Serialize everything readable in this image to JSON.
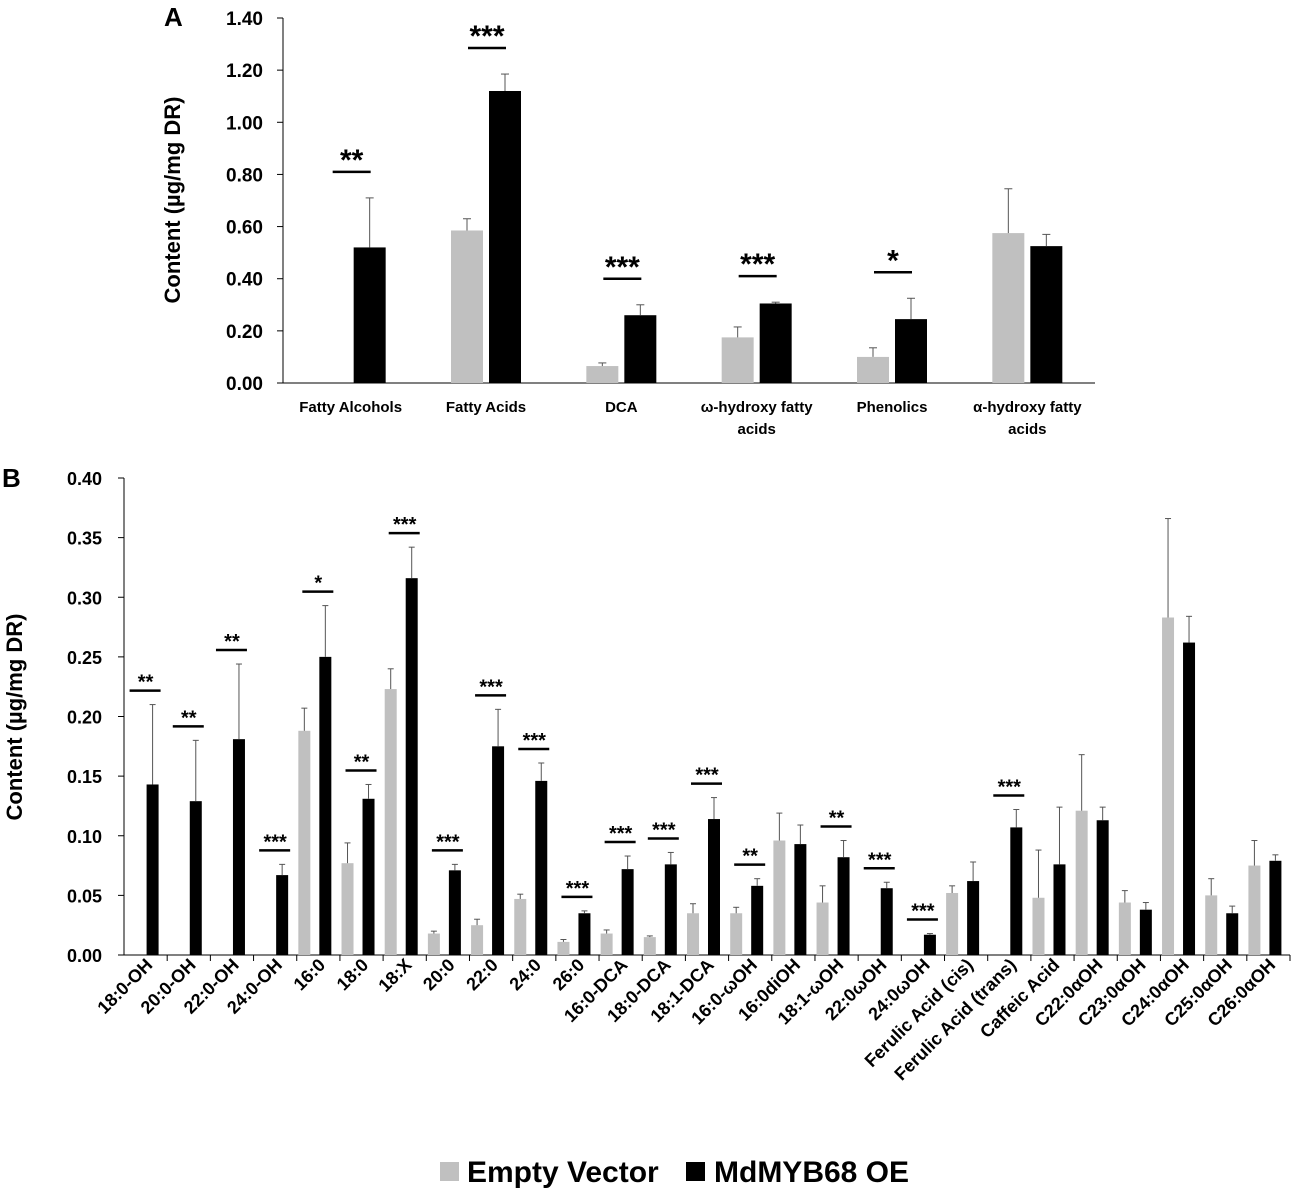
{
  "colors": {
    "empty_vector": "#c0c0c0",
    "overexpression": "#000000"
  },
  "legend": [
    "Empty Vector",
    "MdMYB68 OE"
  ],
  "chart_data": [
    {
      "type": "bar",
      "panel": "A",
      "ylabel": "Content (µg/mg DR)",
      "ylim": [
        0,
        1.4
      ],
      "yticks": [
        "0.00",
        "0.20",
        "0.40",
        "0.60",
        "0.80",
        "1.00",
        "1.20",
        "1.40"
      ],
      "categories": [
        [
          "Fatty Alcohols"
        ],
        [
          "Fatty Acids"
        ],
        [
          "DCA"
        ],
        [
          "ω-hydroxy fatty",
          "acids"
        ],
        [
          "Phenolics"
        ],
        [
          "α-hydroxy fatty",
          "acids"
        ]
      ],
      "series": [
        {
          "name": "Empty Vector",
          "values": [
            0,
            0.585,
            0.065,
            0.175,
            0.1,
            0.575
          ],
          "errors": [
            0,
            0.045,
            0.012,
            0.04,
            0.035,
            0.17
          ]
        },
        {
          "name": "MdMYB68 OE",
          "values": [
            0.52,
            1.12,
            0.26,
            0.305,
            0.245,
            0.525
          ],
          "errors": [
            0.19,
            0.065,
            0.04,
            0.005,
            0.08,
            0.045
          ]
        }
      ],
      "significance": [
        "**",
        "***",
        "***",
        "***",
        "*",
        ""
      ]
    },
    {
      "type": "bar",
      "panel": "B",
      "ylabel": "Content (µg/mg DR)",
      "ylim": [
        0,
        0.4
      ],
      "yticks": [
        "0.00",
        "0.05",
        "0.10",
        "0.15",
        "0.20",
        "0.25",
        "0.30",
        "0.35",
        "0.40"
      ],
      "categories": [
        "18:0-OH",
        "20:0-OH",
        "22:0-OH",
        "24:0-OH",
        "16:0",
        "18:0",
        "18:X",
        "20:0",
        "22:0",
        "24:0",
        "26:0",
        "16:0-DCA",
        "18:0-DCA",
        "18:1-DCA",
        "16:0-ωOH",
        "16:0diOH",
        "18:1-ωOH",
        "22:0ωOH",
        "24:0ωOH",
        "Ferulic Acid (cis)",
        "Ferulic Acid (trans)",
        "Caffeic Acid",
        "C22:0αOH",
        "C23:0αOH",
        "C24:0αOH",
        "C25:0αOH",
        "C26:0αOH"
      ],
      "series": [
        {
          "name": "Empty Vector",
          "values": [
            0,
            0,
            0,
            0,
            0.188,
            0.077,
            0.223,
            0.018,
            0.025,
            0.047,
            0.011,
            0.018,
            0.015,
            0.035,
            0.035,
            0.096,
            0.044,
            0,
            0,
            0.052,
            0,
            0.048,
            0.121,
            0.044,
            0.283,
            0.05,
            0.075
          ],
          "errors": [
            0,
            0,
            0,
            0,
            0.019,
            0.017,
            0.017,
            0.002,
            0.005,
            0.004,
            0.002,
            0.003,
            0.001,
            0.008,
            0.005,
            0.023,
            0.014,
            0,
            0,
            0.006,
            0,
            0.04,
            0.047,
            0.01,
            0.083,
            0.014,
            0.021
          ]
        },
        {
          "name": "MdMYB68 OE",
          "values": [
            0.143,
            0.129,
            0.181,
            0.067,
            0.25,
            0.131,
            0.316,
            0.071,
            0.175,
            0.146,
            0.035,
            0.072,
            0.076,
            0.114,
            0.058,
            0.093,
            0.082,
            0.056,
            0.017,
            0.062,
            0.107,
            0.076,
            0.113,
            0.038,
            0.262,
            0.035,
            0.079
          ],
          "errors": [
            0.067,
            0.051,
            0.063,
            0.009,
            0.043,
            0.012,
            0.026,
            0.005,
            0.031,
            0.015,
            0.002,
            0.011,
            0.01,
            0.018,
            0.006,
            0.016,
            0.014,
            0.005,
            0.001,
            0.016,
            0.015,
            0.048,
            0.011,
            0.006,
            0.022,
            0.006,
            0.005
          ]
        }
      ],
      "significance": [
        "**",
        "**",
        "**",
        "***",
        "*",
        "**",
        "***",
        "***",
        "***",
        "***",
        "***",
        "***",
        "***",
        "***",
        "**",
        "",
        "**",
        "***",
        "***",
        "",
        "***",
        "",
        "",
        "",
        "",
        "",
        ""
      ]
    }
  ]
}
